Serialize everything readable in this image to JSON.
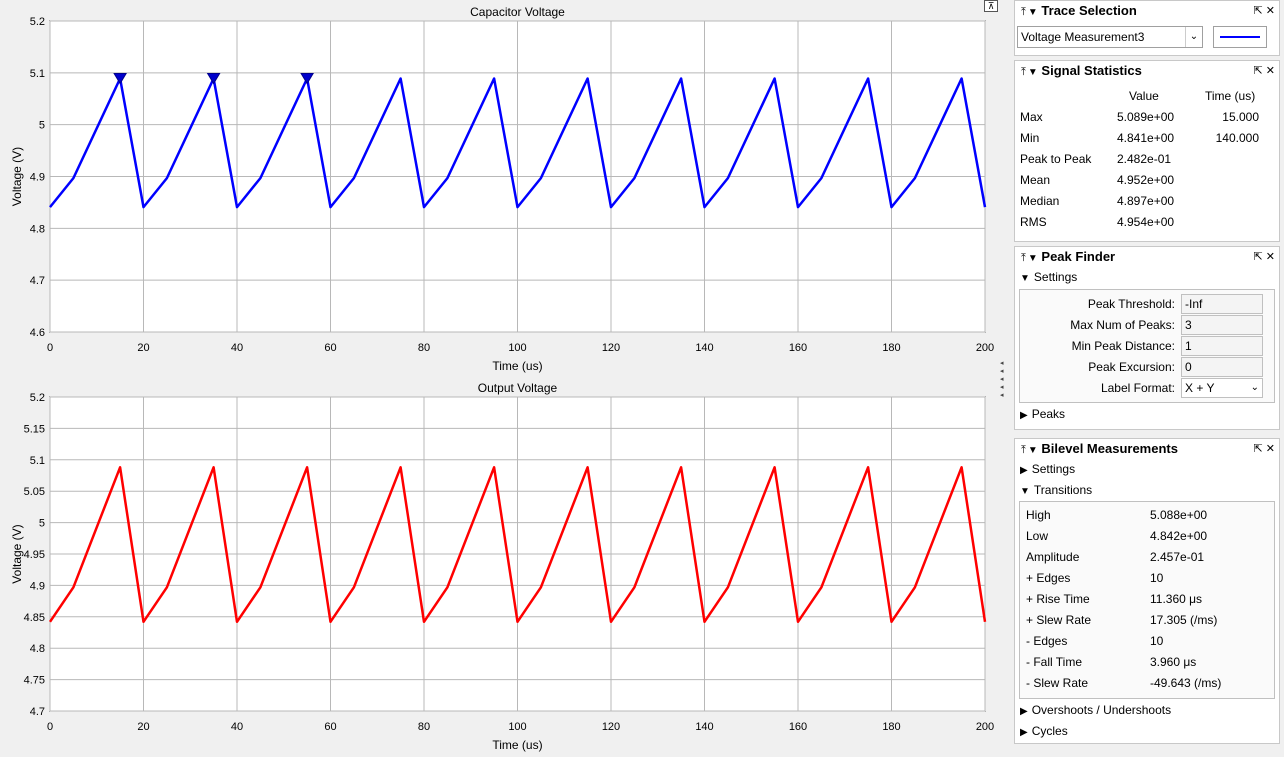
{
  "chart_data": [
    {
      "type": "line",
      "title": "Capacitor Voltage",
      "xlabel": "Time (us)",
      "ylabel": "Voltage (V)",
      "xlim": [
        0,
        200
      ],
      "ylim": [
        4.6,
        5.2
      ],
      "xticks": [
        0,
        20,
        40,
        60,
        80,
        100,
        120,
        140,
        160,
        180,
        200
      ],
      "yticks": [
        4.6,
        4.7,
        4.8,
        4.9,
        5,
        5.1,
        5.2
      ],
      "grid": true,
      "series": [
        {
          "color": "#0000ff",
          "x": [
            0,
            5,
            15,
            20,
            25,
            35,
            40,
            45,
            55,
            60,
            65,
            75,
            80,
            85,
            95,
            100,
            105,
            115,
            120,
            125,
            135,
            140,
            145,
            155,
            160,
            165,
            175,
            180,
            185,
            195,
            200
          ],
          "values": [
            4.841,
            4.897,
            5.089,
            4.841,
            4.897,
            5.089,
            4.841,
            4.897,
            5.089,
            4.841,
            4.897,
            5.089,
            4.841,
            4.897,
            5.089,
            4.841,
            4.897,
            5.089,
            4.841,
            4.897,
            5.089,
            4.841,
            4.897,
            5.089,
            4.841,
            4.897,
            5.089,
            4.841,
            4.897,
            5.089,
            4.841
          ]
        }
      ],
      "peak_markers": [
        {
          "x": 15,
          "y": 5.089
        },
        {
          "x": 35,
          "y": 5.089
        },
        {
          "x": 55,
          "y": 5.089
        }
      ]
    },
    {
      "type": "line",
      "title": "Output Voltage",
      "xlabel": "Time (us)",
      "ylabel": "Voltage (V)",
      "xlim": [
        0,
        200
      ],
      "ylim": [
        4.7,
        5.2
      ],
      "xticks": [
        0,
        20,
        40,
        60,
        80,
        100,
        120,
        140,
        160,
        180,
        200
      ],
      "yticks": [
        4.7,
        4.75,
        4.8,
        4.85,
        4.9,
        4.95,
        5,
        5.05,
        5.1,
        5.15,
        5.2
      ],
      "grid": true,
      "series": [
        {
          "color": "#ff0000",
          "x": [
            0,
            5,
            15,
            20,
            25,
            35,
            40,
            45,
            55,
            60,
            65,
            75,
            80,
            85,
            95,
            100,
            105,
            115,
            120,
            125,
            135,
            140,
            145,
            155,
            160,
            165,
            175,
            180,
            185,
            195,
            200
          ],
          "values": [
            4.842,
            4.897,
            5.088,
            4.842,
            4.897,
            5.088,
            4.842,
            4.897,
            5.088,
            4.842,
            4.897,
            5.088,
            4.842,
            4.897,
            5.088,
            4.842,
            4.897,
            5.088,
            4.842,
            4.897,
            5.088,
            4.842,
            4.897,
            5.088,
            4.842,
            4.897,
            5.088,
            4.842,
            4.897,
            5.088,
            4.842
          ]
        }
      ]
    }
  ],
  "trace_selection": {
    "title": "Trace Selection",
    "selected": "Voltage Measurement3",
    "line_color": "#0000ff"
  },
  "signal_statistics": {
    "title": "Signal Statistics",
    "col_value": "Value",
    "col_time": "Time (us)",
    "rows": [
      {
        "label": "Max",
        "value": "5.089e+00",
        "time": "15.000"
      },
      {
        "label": "Min",
        "value": "4.841e+00",
        "time": "140.000"
      },
      {
        "label": "Peak to Peak",
        "value": "2.482e-01",
        "time": ""
      },
      {
        "label": "Mean",
        "value": "4.952e+00",
        "time": ""
      },
      {
        "label": "Median",
        "value": "4.897e+00",
        "time": ""
      },
      {
        "label": "RMS",
        "value": "4.954e+00",
        "time": ""
      }
    ]
  },
  "peak_finder": {
    "title": "Peak Finder",
    "settings_label": "Settings",
    "fields": [
      {
        "label": "Peak Threshold:",
        "value": "-Inf"
      },
      {
        "label": "Max Num of Peaks:",
        "value": "3"
      },
      {
        "label": "Min Peak Distance:",
        "value": "1"
      },
      {
        "label": "Peak Excursion:",
        "value": "0"
      },
      {
        "label": "Label Format:",
        "value": "X + Y"
      }
    ],
    "peaks_label": "Peaks"
  },
  "bilevel": {
    "title": "Bilevel Measurements",
    "settings_label": "Settings",
    "transitions_label": "Transitions",
    "rows": [
      {
        "label": "High",
        "value": "5.088e+00"
      },
      {
        "label": "Low",
        "value": "4.842e+00"
      },
      {
        "label": "Amplitude",
        "value": "2.457e-01"
      },
      {
        "label": "+ Edges",
        "value": "10"
      },
      {
        "label": "+ Rise Time",
        "value": "11.360 μs"
      },
      {
        "label": "+ Slew Rate",
        "value": "17.305 (/ms)"
      },
      {
        "label": "- Edges",
        "value": "10"
      },
      {
        "label": "- Fall Time",
        "value": "3.960 μs"
      },
      {
        "label": "- Slew Rate",
        "value": "-49.643 (/ms)"
      }
    ],
    "overshoots_label": "Overshoots / Undershoots",
    "cycles_label": "Cycles"
  }
}
